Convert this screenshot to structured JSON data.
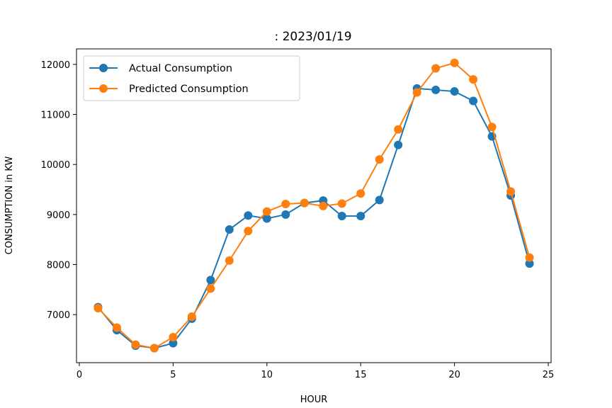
{
  "chart_data": {
    "type": "line",
    "title": ": 2023/01/19",
    "xlabel": "HOUR",
    "ylabel": "CONSUMPTION in KW",
    "xlim": [
      -0.15,
      25.15
    ],
    "ylim": [
      6040,
      12310
    ],
    "xticks": [
      0,
      5,
      10,
      15,
      20,
      25
    ],
    "yticks": [
      7000,
      8000,
      9000,
      10000,
      11000,
      12000
    ],
    "grid": false,
    "legend_position": "upper-left",
    "x": [
      1,
      2,
      3,
      4,
      5,
      6,
      7,
      8,
      9,
      10,
      11,
      12,
      13,
      14,
      15,
      16,
      17,
      18,
      19,
      20,
      21,
      22,
      23,
      24
    ],
    "series": [
      {
        "name": "Actual Consumption",
        "color": "#1f77b4",
        "values": [
          7150,
          6690,
          6380,
          6330,
          6430,
          6920,
          7690,
          8700,
          8980,
          8920,
          9000,
          9230,
          9280,
          8970,
          8970,
          9290,
          10390,
          11520,
          11490,
          11460,
          11270,
          10560,
          9380,
          8020
        ]
      },
      {
        "name": "Predicted Consumption",
        "color": "#ff7f0e",
        "values": [
          7130,
          6740,
          6400,
          6330,
          6550,
          6960,
          7520,
          8080,
          8670,
          9060,
          9210,
          9230,
          9170,
          9220,
          9420,
          10100,
          10700,
          11440,
          11920,
          12030,
          11700,
          10750,
          9460,
          8140
        ]
      }
    ]
  }
}
